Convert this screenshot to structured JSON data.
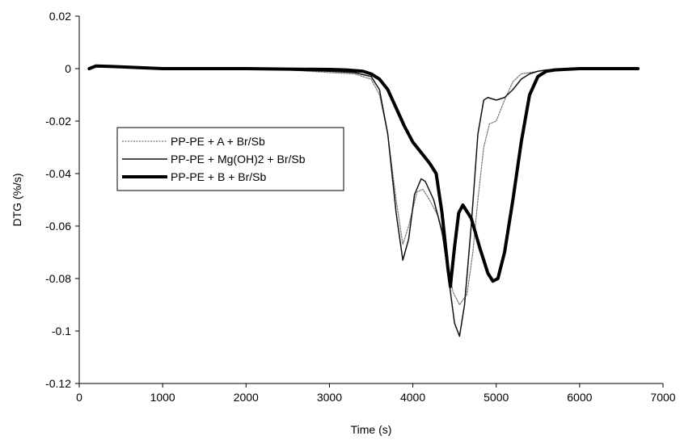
{
  "chart_data": {
    "type": "line",
    "title": "",
    "xlabel": "Time (s)",
    "ylabel": "DTG (%/s)",
    "xlim": [
      0,
      7000
    ],
    "ylim": [
      -0.12,
      0.02
    ],
    "xticks": [
      0,
      1000,
      2000,
      3000,
      4000,
      5000,
      6000,
      7000
    ],
    "yticks": [
      0.02,
      0,
      -0.02,
      -0.04,
      -0.06,
      -0.08,
      -0.1,
      -0.12
    ],
    "ytick_labels": [
      "0.02",
      "0",
      "-0.02",
      "-0.04",
      "-0.06",
      "-0.08",
      "-0.1",
      "-0.12"
    ],
    "grid": false,
    "legend_position": "center-left",
    "series": [
      {
        "name": "PP-PE + A + Br/Sb",
        "color": "#777777",
        "style": "dotted-thin",
        "x": [
          120,
          200,
          400,
          1000,
          2000,
          2500,
          3000,
          3300,
          3500,
          3600,
          3700,
          3800,
          3880,
          3950,
          4050,
          4120,
          4200,
          4300,
          4400,
          4480,
          4560,
          4650,
          4720,
          4780,
          4850,
          4920,
          5000,
          5100,
          5200,
          5300,
          5400,
          5500,
          5600,
          6000,
          6700
        ],
        "y": [
          0.0,
          0.0008,
          0.0005,
          0.0,
          0.0,
          -0.0005,
          -0.0015,
          -0.002,
          -0.004,
          -0.01,
          -0.025,
          -0.05,
          -0.067,
          -0.06,
          -0.047,
          -0.046,
          -0.05,
          -0.056,
          -0.07,
          -0.085,
          -0.09,
          -0.086,
          -0.07,
          -0.05,
          -0.03,
          -0.021,
          -0.02,
          -0.012,
          -0.005,
          -0.002,
          -0.0015,
          -0.001,
          -0.0005,
          0.0,
          0.0
        ]
      },
      {
        "name": "PP-PE + Mg(OH)2 + Br/Sb",
        "color": "#111111",
        "style": "solid-medium",
        "x": [
          120,
          200,
          400,
          1000,
          2000,
          2500,
          3000,
          3300,
          3500,
          3600,
          3700,
          3800,
          3880,
          3950,
          4020,
          4100,
          4150,
          4250,
          4350,
          4430,
          4500,
          4560,
          4620,
          4700,
          4780,
          4850,
          4900,
          5000,
          5100,
          5200,
          5300,
          5400,
          5500,
          5600,
          6000,
          6700
        ],
        "y": [
          0.0,
          0.0008,
          0.0005,
          0.0,
          0.0,
          -0.0005,
          -0.001,
          -0.0015,
          -0.003,
          -0.008,
          -0.025,
          -0.055,
          -0.073,
          -0.065,
          -0.048,
          -0.042,
          -0.043,
          -0.05,
          -0.062,
          -0.08,
          -0.097,
          -0.102,
          -0.09,
          -0.06,
          -0.025,
          -0.012,
          -0.011,
          -0.012,
          -0.011,
          -0.008,
          -0.004,
          -0.002,
          -0.001,
          -0.0005,
          0.0,
          0.0
        ]
      },
      {
        "name": "PP-PE + B + Br/Sb",
        "color": "#000000",
        "style": "solid-thick",
        "x": [
          120,
          200,
          400,
          1000,
          2000,
          2500,
          3000,
          3200,
          3400,
          3500,
          3600,
          3700,
          3800,
          3900,
          4000,
          4100,
          4200,
          4280,
          4350,
          4420,
          4450,
          4500,
          4550,
          4600,
          4700,
          4800,
          4900,
          4960,
          5020,
          5100,
          5200,
          5300,
          5400,
          5500,
          5600,
          5700,
          6000,
          6700
        ],
        "y": [
          0.0,
          0.001,
          0.0008,
          0.0,
          0.0,
          -0.0002,
          -0.0003,
          -0.0005,
          -0.001,
          -0.002,
          -0.004,
          -0.008,
          -0.015,
          -0.022,
          -0.028,
          -0.032,
          -0.036,
          -0.04,
          -0.055,
          -0.076,
          -0.083,
          -0.068,
          -0.055,
          -0.052,
          -0.057,
          -0.068,
          -0.078,
          -0.081,
          -0.08,
          -0.07,
          -0.05,
          -0.028,
          -0.01,
          -0.003,
          -0.001,
          -0.0005,
          0.0,
          0.0
        ]
      }
    ]
  }
}
